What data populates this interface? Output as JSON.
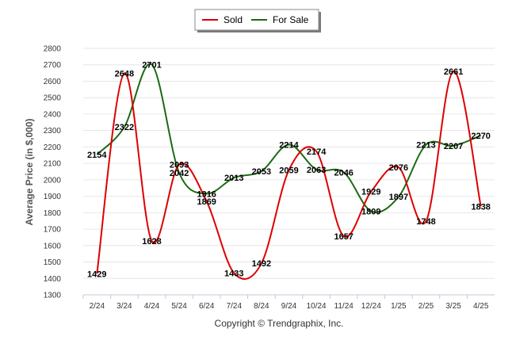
{
  "chart_data": {
    "type": "line",
    "categories": [
      "2/24",
      "3/24",
      "4/24",
      "5/24",
      "6/24",
      "7/24",
      "8/24",
      "9/24",
      "10/24",
      "11/24",
      "12/24",
      "1/25",
      "2/25",
      "3/25",
      "4/25"
    ],
    "series": [
      {
        "name": "Sold",
        "color": "#dd0000",
        "values": [
          1429,
          2648,
          1628,
          2093,
          1869,
          1433,
          1492,
          2059,
          2174,
          1657,
          1929,
          2076,
          1748,
          2661,
          1838
        ]
      },
      {
        "name": "For Sale",
        "color": "#1b6b12",
        "values": [
          2154,
          2322,
          2701,
          2042,
          1916,
          2013,
          2053,
          2214,
          2063,
          2046,
          1809,
          1897,
          2213,
          2207,
          2270
        ]
      }
    ],
    "ylabel": "Average Price (in $,000)",
    "xlabel": "",
    "ylim": [
      1300,
      2800
    ],
    "yticks": [
      1300,
      1400,
      1500,
      1600,
      1700,
      1800,
      1900,
      2000,
      2100,
      2200,
      2300,
      2400,
      2500,
      2600,
      2700,
      2800
    ],
    "grid": true,
    "legend_position": "top-center"
  },
  "copyright": "Copyright © Trendgraphix, Inc."
}
